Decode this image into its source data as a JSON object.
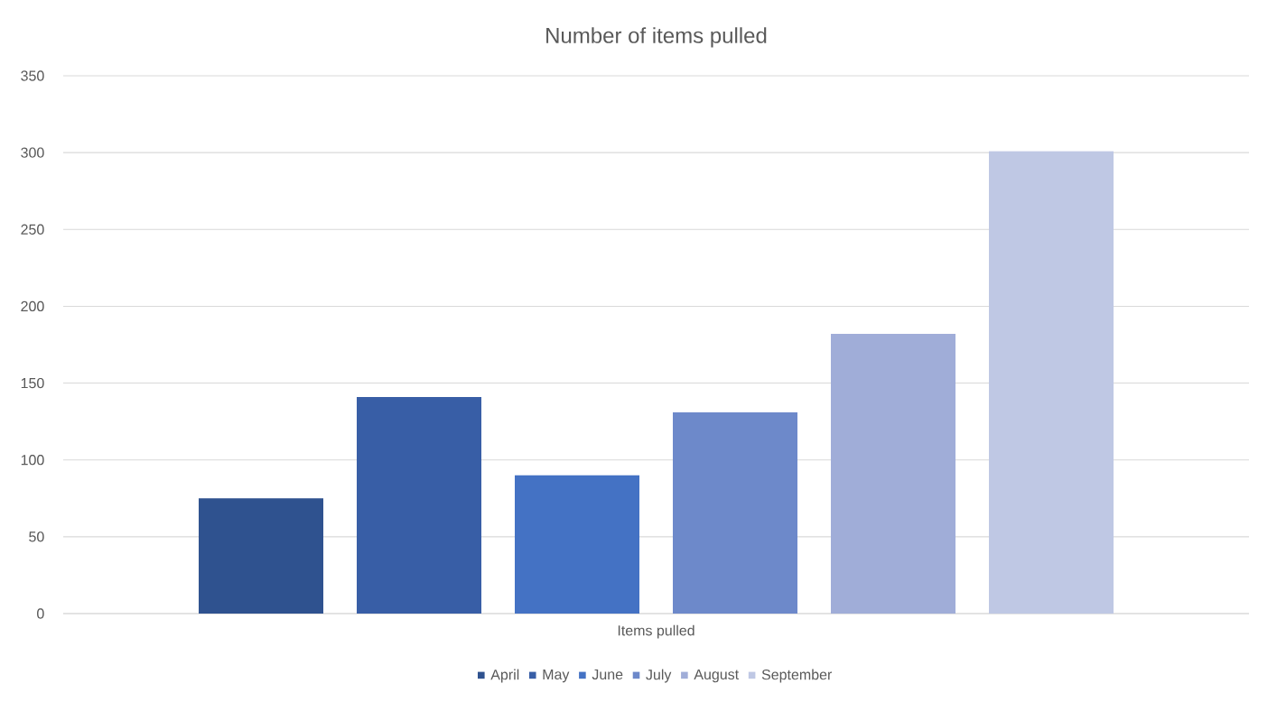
{
  "chart_data": {
    "type": "bar",
    "title": "Number of items pulled",
    "categories": [
      "Items pulled"
    ],
    "series": [
      {
        "name": "April",
        "color": "#2f528f",
        "values": [
          75
        ]
      },
      {
        "name": "May",
        "color": "#385ea6",
        "values": [
          141
        ]
      },
      {
        "name": "June",
        "color": "#4472c4",
        "values": [
          90
        ]
      },
      {
        "name": "July",
        "color": "#6d89ca",
        "values": [
          131
        ]
      },
      {
        "name": "August",
        "color": "#a0add8",
        "values": [
          182
        ]
      },
      {
        "name": "September",
        "color": "#bfc8e4",
        "values": [
          301
        ]
      }
    ],
    "ylim": [
      0,
      350
    ],
    "yticks": [
      0,
      50,
      100,
      150,
      200,
      250,
      300,
      350
    ],
    "grid": "y",
    "legend": "bottom"
  }
}
